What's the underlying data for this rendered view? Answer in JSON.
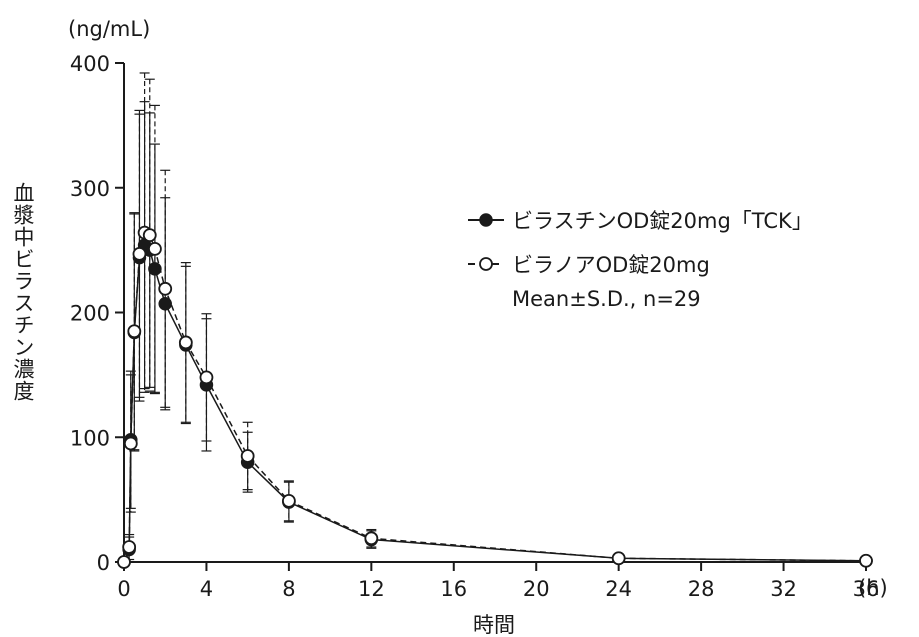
{
  "chart_data": {
    "type": "line",
    "yunit": "(ng/mL)",
    "xunit": "(h)",
    "xlabel": "時間",
    "ylabel": "血漿中ビラスチン濃度",
    "xlim": [
      0,
      36
    ],
    "ylim": [
      0,
      400
    ],
    "xticks": [
      0,
      4,
      8,
      12,
      16,
      20,
      24,
      28,
      32,
      36
    ],
    "yticks": [
      0,
      100,
      200,
      300,
      400
    ],
    "grid": false,
    "legend_position": "right",
    "legend_note": "Mean±S.D., n=29",
    "series": [
      {
        "name": "ビラスチンOD錠20mg「TCK」",
        "marker": "filled-circle",
        "line": "solid",
        "points": [
          {
            "x": 0,
            "y": 0,
            "sd": 0
          },
          {
            "x": 0.25,
            "y": 10,
            "sd": 10
          },
          {
            "x": 0.33,
            "y": 98,
            "sd": 55
          },
          {
            "x": 0.5,
            "y": 184,
            "sd": 95
          },
          {
            "x": 0.75,
            "y": 244,
            "sd": 115
          },
          {
            "x": 1,
            "y": 254,
            "sd": 115
          },
          {
            "x": 1.25,
            "y": 250,
            "sd": 110
          },
          {
            "x": 1.5,
            "y": 235,
            "sd": 100
          },
          {
            "x": 2,
            "y": 207,
            "sd": 85
          },
          {
            "x": 3,
            "y": 174,
            "sd": 63
          },
          {
            "x": 4,
            "y": 142,
            "sd": 53
          },
          {
            "x": 6,
            "y": 80,
            "sd": 24
          },
          {
            "x": 8,
            "y": 48,
            "sd": 16
          },
          {
            "x": 12,
            "y": 18,
            "sd": 7
          },
          {
            "x": 24,
            "y": 3,
            "sd": 1
          },
          {
            "x": 36,
            "y": 1,
            "sd": 0.5
          }
        ]
      },
      {
        "name": "ビラノアOD錠20mg",
        "marker": "open-circle",
        "line": "dashed",
        "points": [
          {
            "x": 0,
            "y": 0,
            "sd": 0
          },
          {
            "x": 0.25,
            "y": 12,
            "sd": 10
          },
          {
            "x": 0.33,
            "y": 95,
            "sd": 55
          },
          {
            "x": 0.5,
            "y": 185,
            "sd": 95
          },
          {
            "x": 0.75,
            "y": 247,
            "sd": 115
          },
          {
            "x": 1,
            "y": 264,
            "sd": 128
          },
          {
            "x": 1.25,
            "y": 262,
            "sd": 125
          },
          {
            "x": 1.5,
            "y": 251,
            "sd": 115
          },
          {
            "x": 2,
            "y": 219,
            "sd": 95
          },
          {
            "x": 3,
            "y": 176,
            "sd": 64
          },
          {
            "x": 4,
            "y": 148,
            "sd": 51
          },
          {
            "x": 6,
            "y": 85,
            "sd": 27
          },
          {
            "x": 8,
            "y": 49,
            "sd": 16
          },
          {
            "x": 12,
            "y": 19,
            "sd": 7
          },
          {
            "x": 24,
            "y": 3,
            "sd": 1
          },
          {
            "x": 36,
            "y": 1,
            "sd": 0.5
          }
        ]
      }
    ]
  }
}
